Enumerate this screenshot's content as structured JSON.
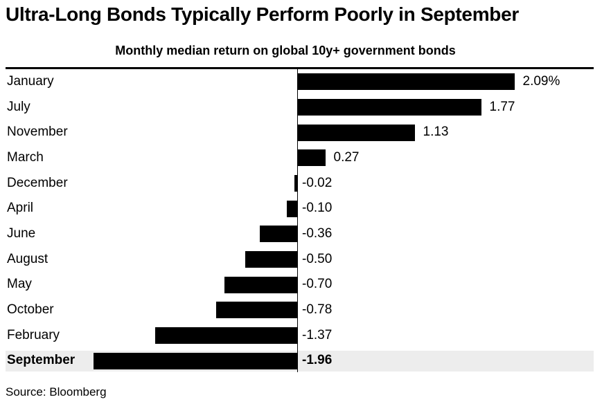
{
  "header": {
    "title": "Ultra-Long Bonds Typically Perform Poorly in September",
    "subtitle": "Monthly median return on global 10y+ government bonds"
  },
  "chart_data": {
    "type": "bar",
    "orientation": "horizontal",
    "title": "Ultra-Long Bonds Typically Perform Poorly in September",
    "subtitle": "Monthly median return on global 10y+ government bonds",
    "xlabel": "",
    "ylabel": "",
    "unit": "%",
    "xlim": [
      -2.8,
      2.85
    ],
    "grid": false,
    "legend": false,
    "bar_color": "#000000",
    "highlight_bg": "#ededed",
    "highlighted_category": "September",
    "categories": [
      "January",
      "July",
      "November",
      "March",
      "December",
      "April",
      "June",
      "August",
      "May",
      "October",
      "February",
      "September"
    ],
    "values": [
      2.09,
      1.77,
      1.13,
      0.27,
      -0.02,
      -0.1,
      -0.36,
      -0.5,
      -0.7,
      -0.78,
      -1.37,
      -1.96
    ],
    "rows": [
      {
        "month": "January",
        "value": 2.09,
        "label": "2.09%",
        "highlight": false
      },
      {
        "month": "July",
        "value": 1.77,
        "label": "1.77",
        "highlight": false
      },
      {
        "month": "November",
        "value": 1.13,
        "label": "1.13",
        "highlight": false
      },
      {
        "month": "March",
        "value": 0.27,
        "label": "0.27",
        "highlight": false
      },
      {
        "month": "December",
        "value": -0.02,
        "label": "-0.02",
        "highlight": false
      },
      {
        "month": "April",
        "value": -0.1,
        "label": "-0.10",
        "highlight": false
      },
      {
        "month": "June",
        "value": -0.36,
        "label": "-0.36",
        "highlight": false
      },
      {
        "month": "August",
        "value": -0.5,
        "label": "-0.50",
        "highlight": false
      },
      {
        "month": "May",
        "value": -0.7,
        "label": "-0.70",
        "highlight": false
      },
      {
        "month": "October",
        "value": -0.78,
        "label": "-0.78",
        "highlight": false
      },
      {
        "month": "February",
        "value": -1.37,
        "label": "-1.37",
        "highlight": false
      },
      {
        "month": "September",
        "value": -1.96,
        "label": "-1.96",
        "highlight": true
      }
    ]
  },
  "footer": {
    "source": "Source: Bloomberg"
  }
}
